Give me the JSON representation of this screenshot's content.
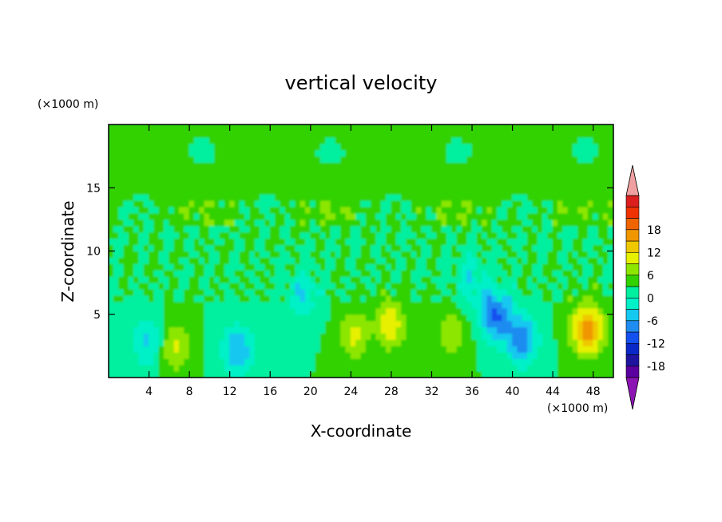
{
  "chart_data": {
    "type": "heatmap",
    "title": "vertical velocity",
    "xlabel": "X-coordinate",
    "ylabel": "Z-coordinate",
    "x_unit": "(×1000 m)",
    "y_unit": "(×1000 m)",
    "xlim": [
      0,
      50
    ],
    "ylim": [
      0,
      20
    ],
    "x_ticks": [
      4,
      8,
      12,
      16,
      20,
      24,
      28,
      32,
      36,
      40,
      44,
      48
    ],
    "y_ticks": [
      5,
      10,
      15
    ],
    "colorbar": {
      "ticks": [
        18,
        12,
        6,
        0,
        -6,
        -12,
        -18
      ],
      "levels": [
        -21,
        -18,
        -15,
        -12,
        -9,
        -6,
        -3,
        0,
        3,
        6,
        9,
        12,
        15,
        18,
        21
      ],
      "colors": [
        "#5a00a0",
        "#1e14a0",
        "#0a28c8",
        "#1450f0",
        "#1e8cf0",
        "#14c8f0",
        "#00f0c8",
        "#00f0a0",
        "#32d200",
        "#8ce600",
        "#e6f000",
        "#f0c800",
        "#f09600",
        "#f06400",
        "#f03200",
        "#dc1e1e"
      ],
      "over_color": "#f0a0a0",
      "under_color": "#8c14b4"
    },
    "features": [
      {
        "x": 6.5,
        "z": 2.5,
        "value": 7
      },
      {
        "x": 4,
        "z": 2.8,
        "value": -7
      },
      {
        "x": 12.8,
        "z": 2.2,
        "value": -9
      },
      {
        "x": 19.2,
        "z": 6.5,
        "value": -6
      },
      {
        "x": 24.6,
        "z": 3.4,
        "value": 8
      },
      {
        "x": 27.8,
        "z": 4.2,
        "value": 9
      },
      {
        "x": 26,
        "z": 3.6,
        "value": -3
      },
      {
        "x": 38.4,
        "z": 5,
        "value": -12
      },
      {
        "x": 41,
        "z": 3,
        "value": -11
      },
      {
        "x": 36,
        "z": 7.5,
        "value": -5
      },
      {
        "x": 47.5,
        "z": 3.8,
        "value": 14
      },
      {
        "x": 34,
        "z": 3.5,
        "value": 5
      }
    ]
  }
}
